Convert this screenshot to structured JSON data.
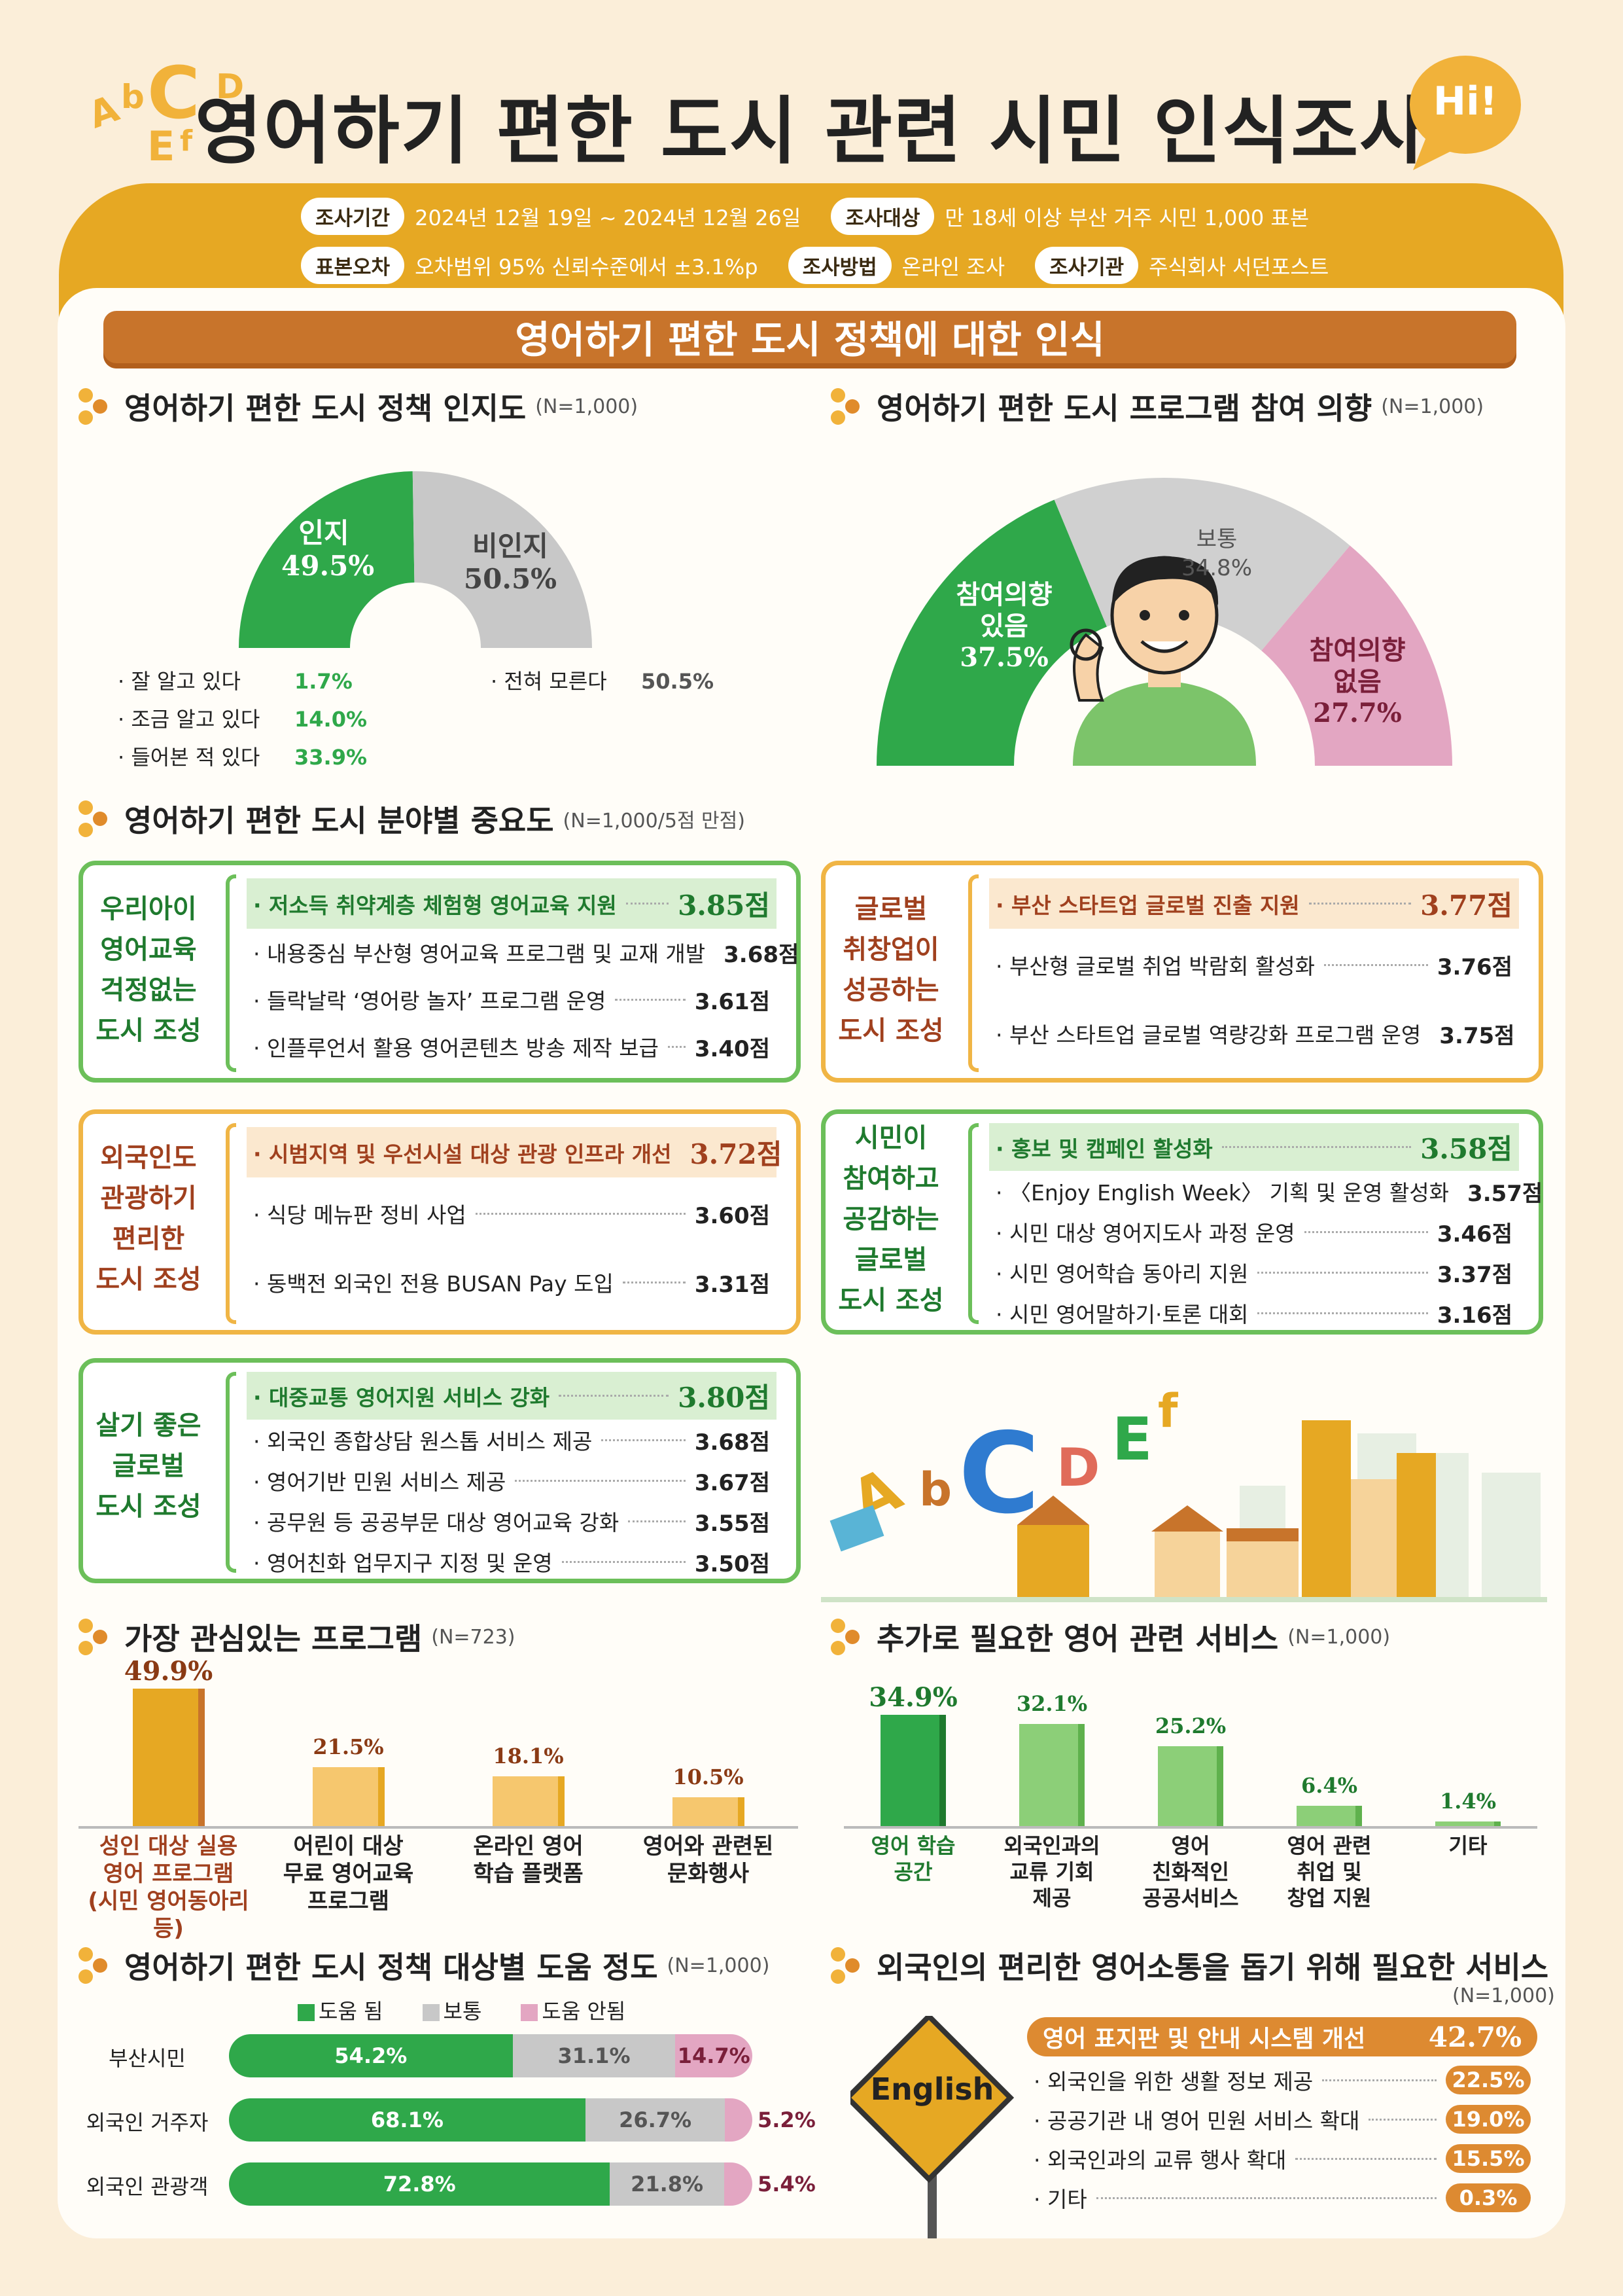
{
  "title": "영어하기 편한 도시 관련 시민 인식조사",
  "hi_bubble": "Hi!",
  "deco_letters": [
    "A",
    "b",
    "C",
    "D",
    "E",
    "f"
  ],
  "meta": [
    {
      "tag": "조사기간",
      "text": "2024년 12월 19일 ~ 2024년 12월 26일"
    },
    {
      "tag": "조사대상",
      "text": "만 18세 이상 부산 거주 시민 1,000 표본"
    },
    {
      "tag": "표본오차",
      "text": "오차범위 95% 신뢰수준에서 ±3.1%p"
    },
    {
      "tag": "조사방법",
      "text": "온라인 조사"
    },
    {
      "tag": "조사기관",
      "text": "주식회사 서던포스트"
    }
  ],
  "banner": "영어하기 편한 도시 정책에 대한 인식",
  "awareness": {
    "title": "영어하기 편한 도시 정책 인지도",
    "n": "(N=1,000)",
    "aware_label": "인지",
    "aware_value": "49.5%",
    "aware_pct": 49.5,
    "unaware_label": "비인지",
    "unaware_value": "50.5%",
    "unaware_pct": 50.5,
    "details": [
      {
        "label": "· 잘 알고 있다",
        "value": "1.7%"
      },
      {
        "label": "· 조금 알고 있다",
        "value": "14.0%"
      },
      {
        "label": "· 들어본 적 있다",
        "value": "33.9%"
      }
    ],
    "none": {
      "label": "· 전혀 모른다",
      "value": "50.5%"
    }
  },
  "participation": {
    "title": "영어하기 편한 도시 프로그램 참여 의향",
    "n": "(N=1,000)",
    "yes_label1": "참여의향",
    "yes_label2": "있음",
    "yes_value": "37.5%",
    "yes_pct": 37.5,
    "mid_label": "보통",
    "mid_value": "34.8%",
    "mid_pct": 34.8,
    "no_label1": "참여의향",
    "no_label2": "없음",
    "no_value": "27.7%",
    "no_pct": 27.7
  },
  "importance": {
    "title": "영어하기 편한 도시 분야별 중요도",
    "n": "(N=1,000/5점 만점)",
    "boxes": [
      {
        "label": [
          "우리아이",
          "영어교육",
          "걱정없는",
          "도시 조성"
        ],
        "items": [
          {
            "label": "· 저소득 취약계층 체험형 영어교육 지원",
            "value": "3.85점"
          },
          {
            "label": "· 내용중심 부산형 영어교육 프로그램 및 교재 개발",
            "value": "3.68점"
          },
          {
            "label": "· 들락날락 ‘영어랑 놀자’ 프로그램 운영",
            "value": "3.61점"
          },
          {
            "label": "· 인플루언서 활용 영어콘텐츠 방송 제작 보급",
            "value": "3.40점"
          }
        ]
      },
      {
        "label": [
          "글로벌",
          "취창업이",
          "성공하는",
          "도시 조성"
        ],
        "items": [
          {
            "label": "· 부산 스타트업 글로벌 진출 지원",
            "value": "3.77점"
          },
          {
            "label": "· 부산형 글로벌 취업 박람회 활성화",
            "value": "3.76점"
          },
          {
            "label": "· 부산 스타트업 글로벌 역량강화 프로그램 운영",
            "value": "3.75점"
          }
        ]
      },
      {
        "label": [
          "외국인도",
          "관광하기",
          "편리한",
          "도시 조성"
        ],
        "items": [
          {
            "label": "· 시범지역 및 우선시설 대상 관광 인프라 개선",
            "value": "3.72점"
          },
          {
            "label": "· 식당 메뉴판 정비 사업",
            "value": "3.60점"
          },
          {
            "label": "· 동백전 외국인 전용 BUSAN Pay 도입",
            "value": "3.31점"
          }
        ]
      },
      {
        "label": [
          "시민이",
          "참여하고",
          "공감하는",
          "글로벌",
          "도시 조성"
        ],
        "items": [
          {
            "label": "· 홍보 및 캠페인 활성화",
            "value": "3.58점"
          },
          {
            "label": "· 〈Enjoy English Week〉 기획 및 운영 활성화",
            "value": "3.57점"
          },
          {
            "label": "· 시민 대상 영어지도사 과정 운영",
            "value": "3.46점"
          },
          {
            "label": "· 시민 영어학습 동아리 지원",
            "value": "3.37점"
          },
          {
            "label": "· 시민 영어말하기·토론 대회",
            "value": "3.16점"
          }
        ]
      },
      {
        "label": [
          "살기 좋은",
          "글로벌",
          "도시 조성"
        ],
        "items": [
          {
            "label": "· 대중교통 영어지원 서비스 강화",
            "value": "3.80점"
          },
          {
            "label": "· 외국인 종합상담 원스톱 서비스 제공",
            "value": "3.68점"
          },
          {
            "label": "· 영어기반 민원 서비스 제공",
            "value": "3.67점"
          },
          {
            "label": "· 공무원 등 공공부문 대상 영어교육 강화",
            "value": "3.55점"
          },
          {
            "label": "· 영어친화 업무지구 지정 및 운영",
            "value": "3.50점"
          }
        ]
      }
    ]
  },
  "interest": {
    "title": "가장 관심있는 프로그램",
    "n": "(N=723)",
    "bars": [
      {
        "label": [
          "성인 대상 실용",
          "영어 프로그램",
          "(시민 영어동아리 등)"
        ],
        "value": "49.9%",
        "pct": 49.9
      },
      {
        "label": [
          "어린이 대상",
          "무료 영어교육",
          "프로그램"
        ],
        "value": "21.5%",
        "pct": 21.5
      },
      {
        "label": [
          "온라인 영어",
          "학습 플랫폼"
        ],
        "value": "18.1%",
        "pct": 18.1
      },
      {
        "label": [
          "영어와 관련된",
          "문화행사"
        ],
        "value": "10.5%",
        "pct": 10.5
      }
    ]
  },
  "services": {
    "title": "추가로 필요한 영어 관련 서비스",
    "n": "(N=1,000)",
    "bars": [
      {
        "label": [
          "영어 학습",
          "공간"
        ],
        "value": "34.9%",
        "pct": 34.9
      },
      {
        "label": [
          "외국인과의",
          "교류 기회",
          "제공"
        ],
        "value": "32.1%",
        "pct": 32.1
      },
      {
        "label": [
          "영어",
          "친화적인",
          "공공서비스"
        ],
        "value": "25.2%",
        "pct": 25.2
      },
      {
        "label": [
          "영어 관련",
          "취업 및",
          "창업 지원"
        ],
        "value": "6.4%",
        "pct": 6.4
      },
      {
        "label": [
          "기타"
        ],
        "value": "1.4%",
        "pct": 1.4
      }
    ]
  },
  "helpfulness": {
    "title": "영어하기 편한 도시 정책 대상별 도움 정도",
    "n": "(N=1,000)",
    "legend": [
      "도움 됨",
      "보통",
      "도움 안됨"
    ],
    "rows": [
      {
        "label": "부산시민",
        "good": "54.2%",
        "mid": "31.1%",
        "bad": "14.7%",
        "g": 54.2,
        "m": 31.1,
        "b": 14.7
      },
      {
        "label": "외국인 거주자",
        "good": "68.1%",
        "mid": "26.7%",
        "bad": "5.2%",
        "g": 68.1,
        "m": 26.7,
        "b": 5.2
      },
      {
        "label": "외국인 관광객",
        "good": "72.8%",
        "mid": "21.8%",
        "bad": "5.4%",
        "g": 72.8,
        "m": 21.8,
        "b": 5.4
      }
    ]
  },
  "foreigner": {
    "title": "외국인의 편리한 영어소통을 돕기 위해 필요한 서비스",
    "n": "(N=1,000)",
    "sign_text": "English",
    "top": {
      "label": "영어 표지판 및 안내 시스템 개선",
      "value": "42.7%"
    },
    "items": [
      {
        "label": "· 외국인을 위한 생활 정보 제공",
        "value": "22.5%"
      },
      {
        "label": "· 공공기관 내 영어 민원 서비스 확대",
        "value": "19.0%"
      },
      {
        "label": "· 외국인과의 교류 행사 확대",
        "value": "15.5%"
      },
      {
        "label": "· 기타",
        "value": "0.3%"
      }
    ]
  },
  "colors": {
    "green": "#2fa84a",
    "gray": "#c8c8c8",
    "pink": "#e3a6c2",
    "orange": "#e6a823",
    "brown": "#c8742b"
  }
}
